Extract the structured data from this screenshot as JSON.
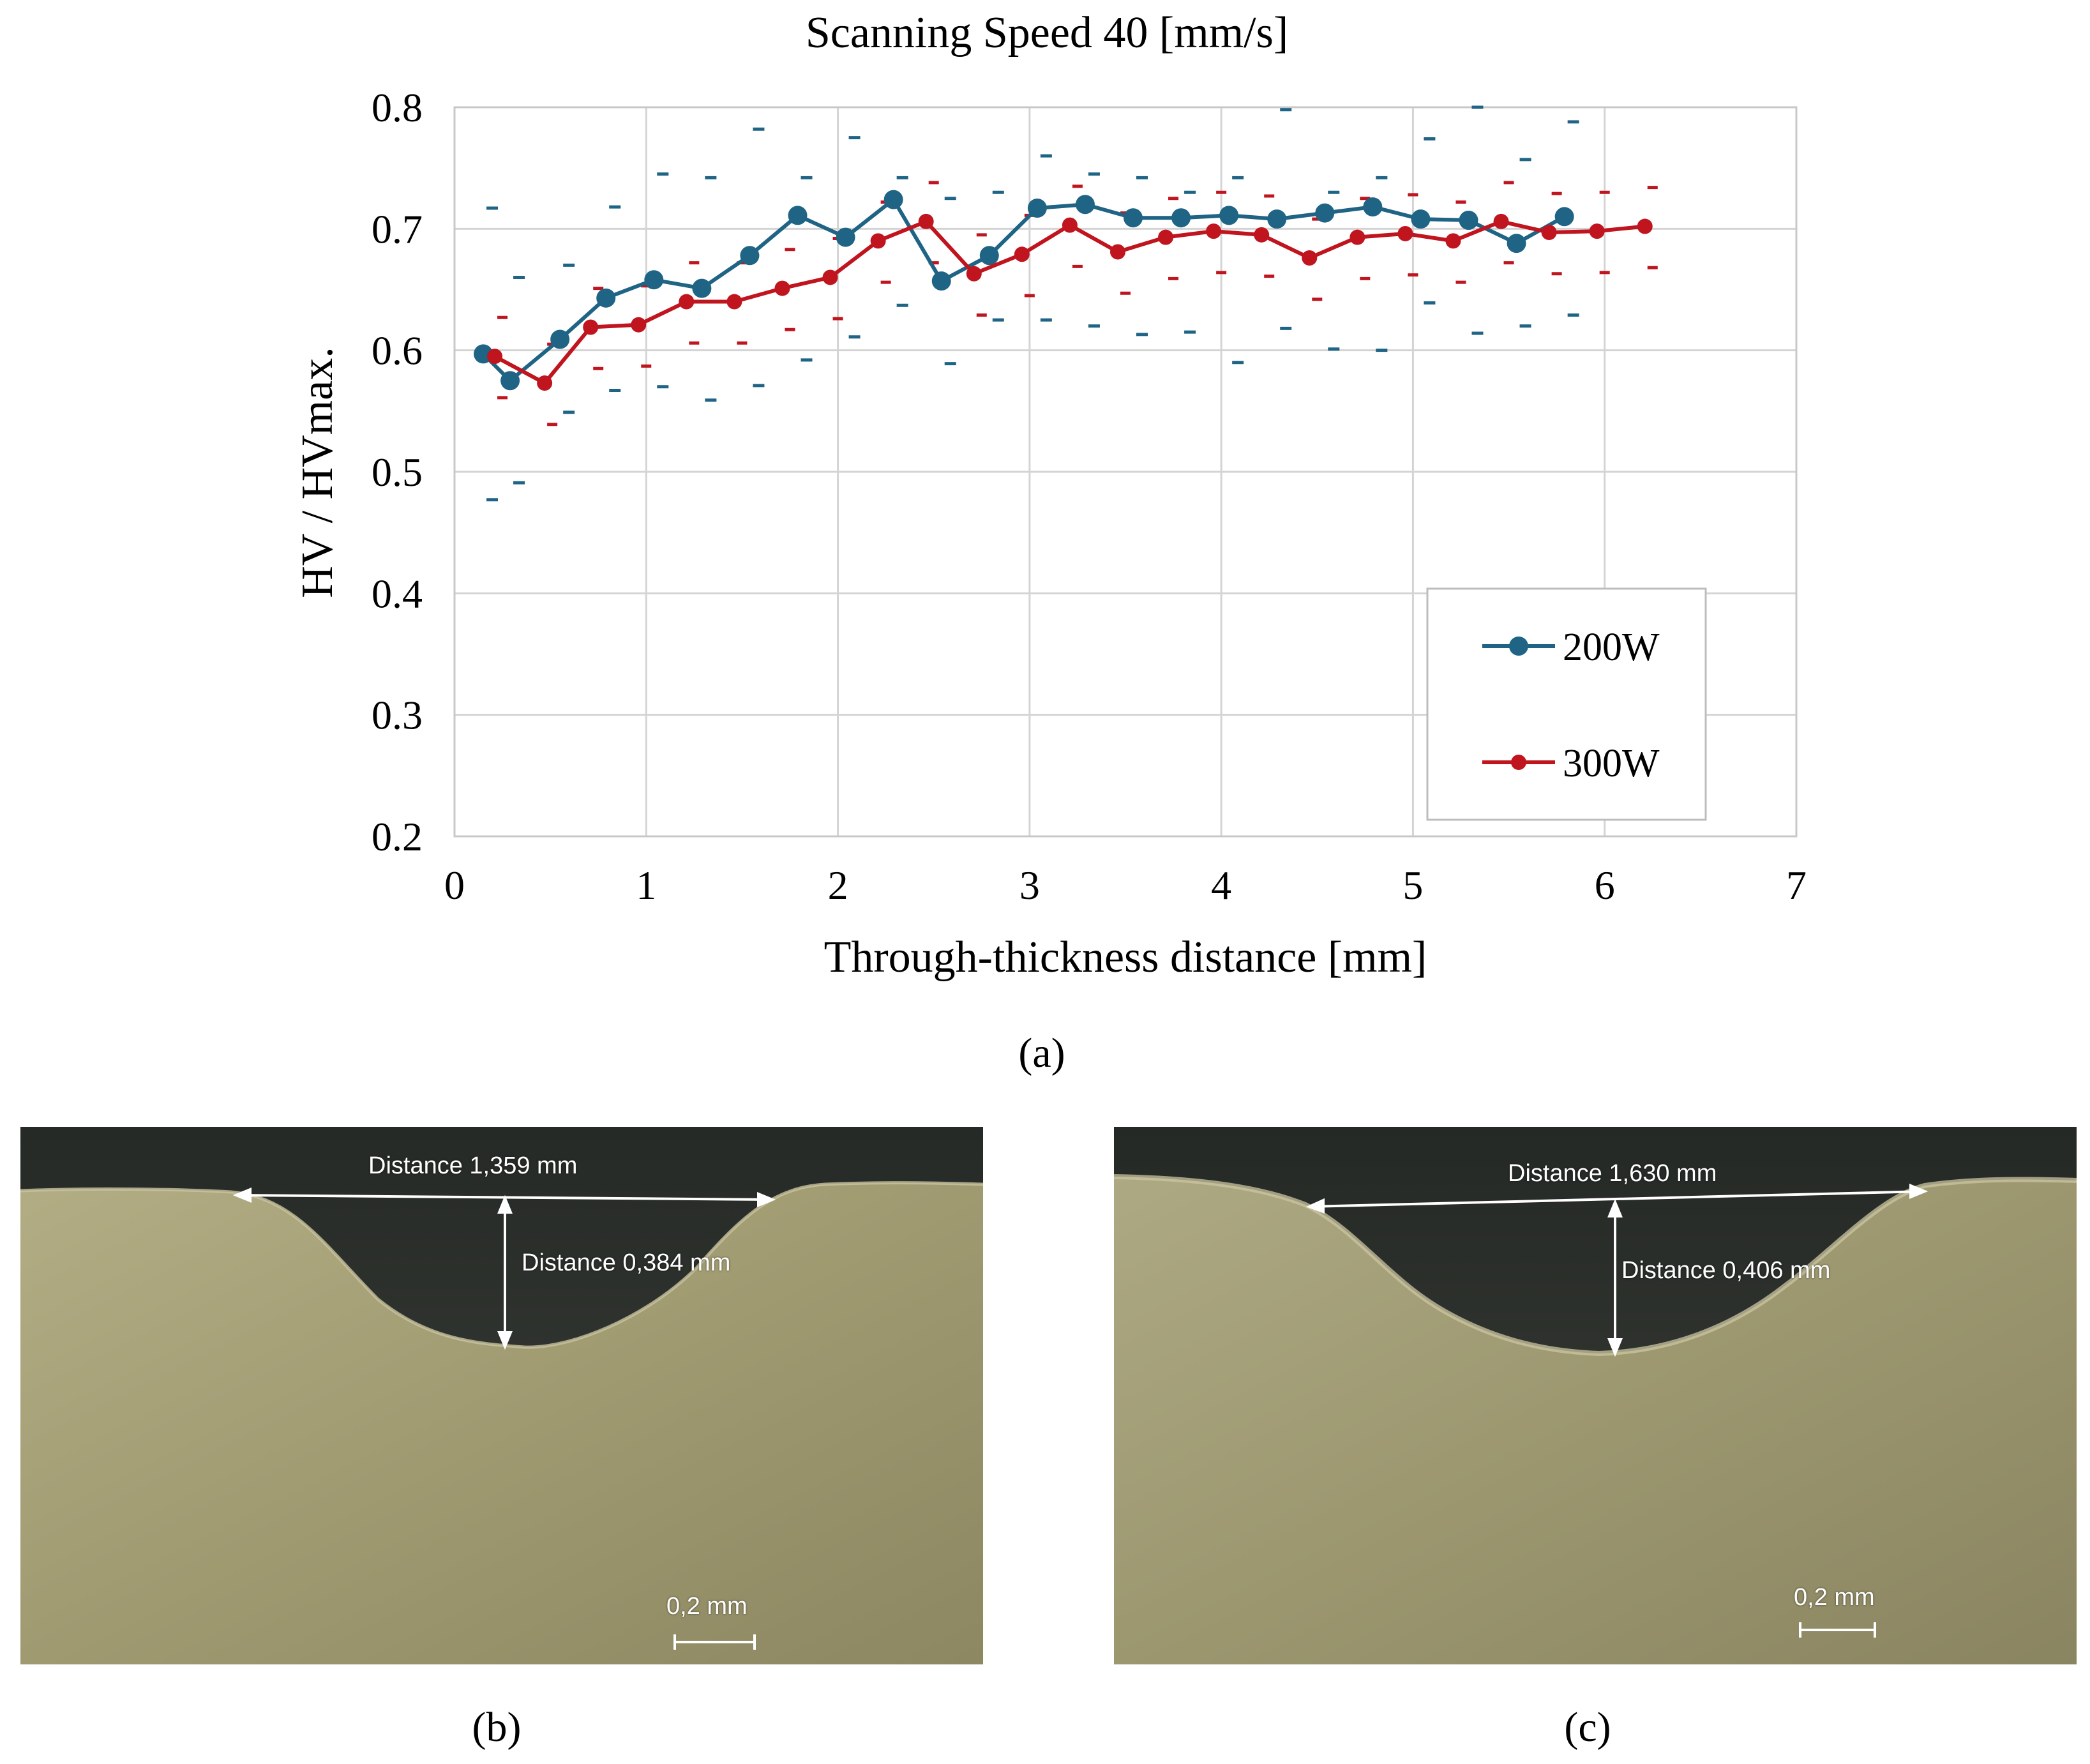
{
  "chart_data": {
    "type": "line",
    "title": "Scanning  Speed 40 [mm/s]",
    "xlabel": "Through-thickness  distance  [mm]",
    "ylabel": "HV / HVmax.",
    "xlim": [
      0,
      7
    ],
    "ylim": [
      0.2,
      0.8
    ],
    "x_ticks": [
      "0",
      "1",
      "2",
      "3",
      "4",
      "5",
      "6",
      "7"
    ],
    "y_ticks": [
      "0.2",
      "0.3",
      "0.4",
      "0.5",
      "0.6",
      "0.7",
      "0.8"
    ],
    "grid": true,
    "legend_position": "lower-right",
    "series": [
      {
        "name": "200W",
        "color": "#1f6485",
        "x": [
          0.15,
          0.29,
          0.55,
          0.79,
          1.04,
          1.29,
          1.54,
          1.79,
          2.04,
          2.29,
          2.54,
          2.79,
          3.04,
          3.29,
          3.54,
          3.79,
          4.04,
          4.29,
          4.54,
          4.79,
          5.04,
          5.29,
          5.54,
          5.79
        ],
        "y": [
          0.597,
          0.575,
          0.609,
          0.643,
          0.658,
          0.651,
          0.678,
          0.711,
          0.693,
          0.724,
          0.657,
          0.678,
          0.717,
          0.72,
          0.709,
          0.709,
          0.711,
          0.708,
          0.713,
          0.718,
          0.708,
          0.707,
          0.688,
          0.71
        ],
        "upper": [
          0.717,
          0.66,
          0.67,
          0.718,
          0.745,
          0.742,
          0.782,
          0.742,
          0.775,
          0.742,
          0.725,
          0.73,
          0.76,
          0.745,
          0.742,
          0.73,
          0.742,
          0.798,
          0.73,
          0.742,
          0.774,
          0.8,
          0.757,
          0.788
        ],
        "lower": [
          0.477,
          0.491,
          0.549,
          0.567,
          0.57,
          0.559,
          0.571,
          0.592,
          0.611,
          0.637,
          0.589,
          0.625,
          0.625,
          0.62,
          0.613,
          0.615,
          0.59,
          0.618,
          0.601,
          0.6,
          0.639,
          0.614,
          0.62,
          0.629
        ]
      },
      {
        "name": "300W",
        "color": "#c0141e",
        "x": [
          0.21,
          0.47,
          0.71,
          0.96,
          1.21,
          1.46,
          1.71,
          1.96,
          2.21,
          2.46,
          2.71,
          2.96,
          3.21,
          3.46,
          3.71,
          3.96,
          4.21,
          4.46,
          4.71,
          4.96,
          5.21,
          5.46,
          5.71,
          5.96,
          6.21
        ],
        "y": [
          0.595,
          0.573,
          0.619,
          0.621,
          0.64,
          0.64,
          0.651,
          0.66,
          0.69,
          0.706,
          0.663,
          0.679,
          0.703,
          0.681,
          0.693,
          0.698,
          0.695,
          0.676,
          0.693,
          0.696,
          0.69,
          0.706,
          0.697,
          0.698,
          0.702
        ]
      }
    ]
  },
  "panels": [
    {
      "caption": "(a)"
    },
    {
      "caption": "(b)",
      "width_label": "Distance 1,359 mm",
      "depth_label": "Distance 0,384 mm",
      "scale_label": "0,2 mm"
    },
    {
      "caption": "(c)",
      "width_label": "Distance 1,630 mm",
      "depth_label": "Distance 0,406 mm",
      "scale_label": "0,2 mm"
    }
  ]
}
